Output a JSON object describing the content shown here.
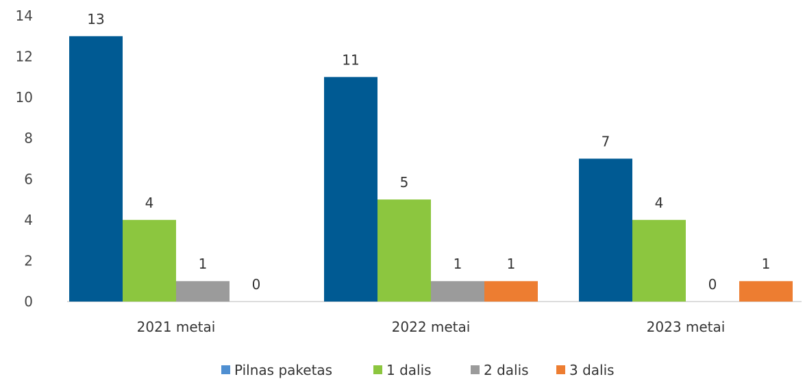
{
  "chart_data": {
    "type": "bar",
    "categories": [
      "2021 metai",
      "2022 metai",
      "2023 metai"
    ],
    "series": [
      {
        "name": "Pilnas paketas",
        "values": [
          13,
          11,
          7
        ],
        "color": "#005a93",
        "legend_color": "#4f8fd1"
      },
      {
        "name": "1 dalis",
        "values": [
          4,
          5,
          4
        ],
        "color": "#8cc63f",
        "legend_color": "#8cc63f"
      },
      {
        "name": "2 dalis",
        "values": [
          1,
          1,
          0
        ],
        "color": "#9b9b9b",
        "legend_color": "#9b9b9b"
      },
      {
        "name": "3 dalis",
        "values": [
          0,
          1,
          1
        ],
        "color": "#ed7d31",
        "legend_color": "#ed7d31"
      }
    ],
    "ylim": [
      0,
      14
    ],
    "yticks": [
      "0",
      "2",
      "4",
      "6",
      "8",
      "10",
      "12",
      "14"
    ],
    "grid": false,
    "data_labels": true,
    "legend_position": "bottom"
  }
}
